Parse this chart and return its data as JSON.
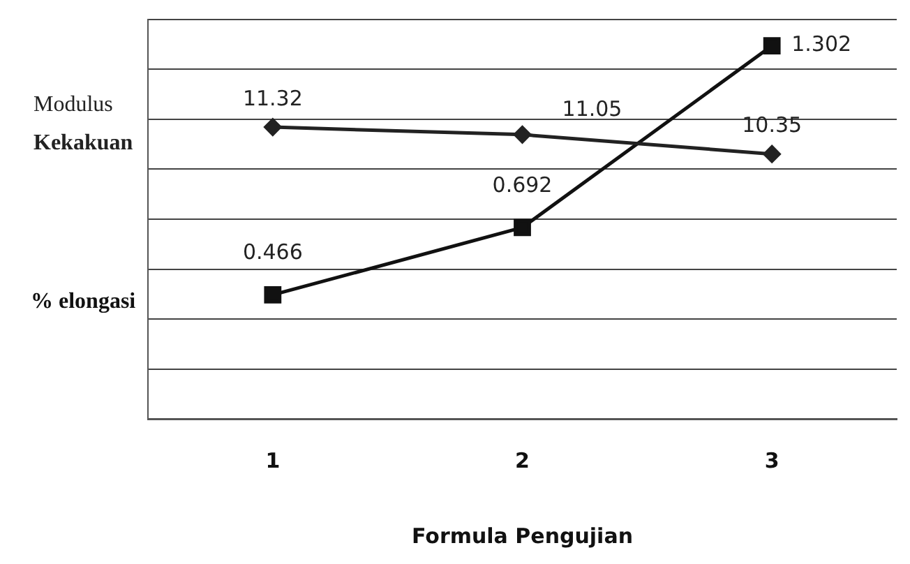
{
  "chart_data": {
    "type": "line",
    "xlabel": "Formula Pengujian",
    "categories": [
      "1",
      "2",
      "3"
    ],
    "series": [
      {
        "name": "Modulus Kekakuan",
        "color": "#222222",
        "marker": "diamond",
        "values": [
          11.32,
          11.05,
          10.35
        ]
      },
      {
        "name": "% elongasi",
        "color": "#111111",
        "marker": "square",
        "axis": "y2",
        "values": [
          0.466,
          0.692,
          1.302
        ]
      }
    ],
    "ylim": [
      0.8,
      15.2
    ],
    "yticks": [
      {
        "value": 0.8,
        "label": null
      },
      {
        "value": 2.6,
        "label": null
      },
      {
        "value": 4.4,
        "label": null
      },
      {
        "value": 6.2,
        "label": null
      },
      {
        "value": 8,
        "label": null
      },
      {
        "value": 9.8,
        "label": null
      },
      {
        "value": 11.6,
        "label": null
      },
      {
        "value": 13.4,
        "label": null
      },
      {
        "value": 15.2,
        "label": null
      }
    ],
    "y2lim": [
      0.05,
      1.39
    ],
    "grid": "y",
    "legend": false,
    "tick_labels": "x",
    "data_labels": true
  }
}
